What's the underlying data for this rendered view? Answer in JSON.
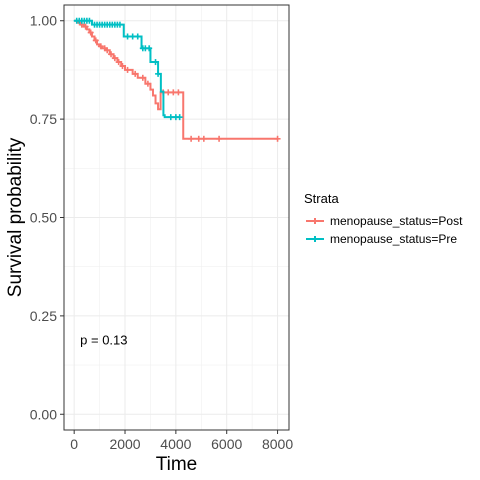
{
  "chart_data": {
    "type": "line",
    "subtype": "kaplan-meier-step",
    "xlabel": "Time",
    "ylabel": "Survival probability",
    "xlim": [
      -400,
      8450
    ],
    "ylim": [
      -0.04,
      1.04
    ],
    "xticks": [
      0,
      2000,
      4000,
      6000,
      8000
    ],
    "xtick_labels": [
      "0",
      "2000",
      "4000",
      "6000",
      "8000"
    ],
    "yticks": [
      0.0,
      0.25,
      0.5,
      0.75,
      1.0
    ],
    "ytick_labels": [
      "0.00",
      "0.25",
      "0.50",
      "0.75",
      "1.00"
    ],
    "grid": true,
    "legend": {
      "title": "Strata",
      "placement": "right"
    },
    "annotation": "p = 0.13",
    "series": [
      {
        "name": "menopause_status=Post",
        "color": "#F8766D",
        "steps": [
          [
            0,
            1.0
          ],
          [
            160,
            0.995
          ],
          [
            260,
            0.99
          ],
          [
            380,
            0.985
          ],
          [
            500,
            0.978
          ],
          [
            600,
            0.97
          ],
          [
            700,
            0.96
          ],
          [
            800,
            0.95
          ],
          [
            900,
            0.94
          ],
          [
            1000,
            0.935
          ],
          [
            1100,
            0.93
          ],
          [
            1250,
            0.925
          ],
          [
            1400,
            0.915
          ],
          [
            1550,
            0.905
          ],
          [
            1700,
            0.895
          ],
          [
            1850,
            0.885
          ],
          [
            2000,
            0.875
          ],
          [
            2300,
            0.865
          ],
          [
            2500,
            0.855
          ],
          [
            2800,
            0.84
          ],
          [
            3000,
            0.825
          ],
          [
            3100,
            0.81
          ],
          [
            3200,
            0.79
          ],
          [
            3300,
            0.775
          ],
          [
            3400,
            0.818
          ],
          [
            4290,
            0.7
          ],
          [
            8000,
            0.7
          ]
        ],
        "censor_times": [
          300,
          450,
          650,
          850,
          1050,
          1200,
          1300,
          1450,
          1600,
          1750,
          1900,
          2100,
          2400,
          2700,
          2900,
          3500,
          3700,
          3900,
          4100,
          4600,
          4900,
          5100,
          5700,
          8000
        ]
      },
      {
        "name": "menopause_status=Pre",
        "color": "#00BFC4",
        "steps": [
          [
            0,
            1.0
          ],
          [
            700,
            0.99
          ],
          [
            1950,
            0.96
          ],
          [
            2650,
            0.93
          ],
          [
            3000,
            0.895
          ],
          [
            3300,
            0.865
          ],
          [
            3410,
            0.82
          ],
          [
            3510,
            0.76
          ],
          [
            3560,
            0.755
          ],
          [
            4150,
            0.755
          ]
        ],
        "censor_times": [
          100,
          200,
          300,
          400,
          500,
          600,
          800,
          900,
          1000,
          1100,
          1200,
          1300,
          1400,
          1500,
          1600,
          1700,
          1800,
          2100,
          2300,
          2500,
          2700,
          2800,
          2950,
          3200,
          3300,
          3800,
          4000,
          4150
        ]
      }
    ]
  }
}
